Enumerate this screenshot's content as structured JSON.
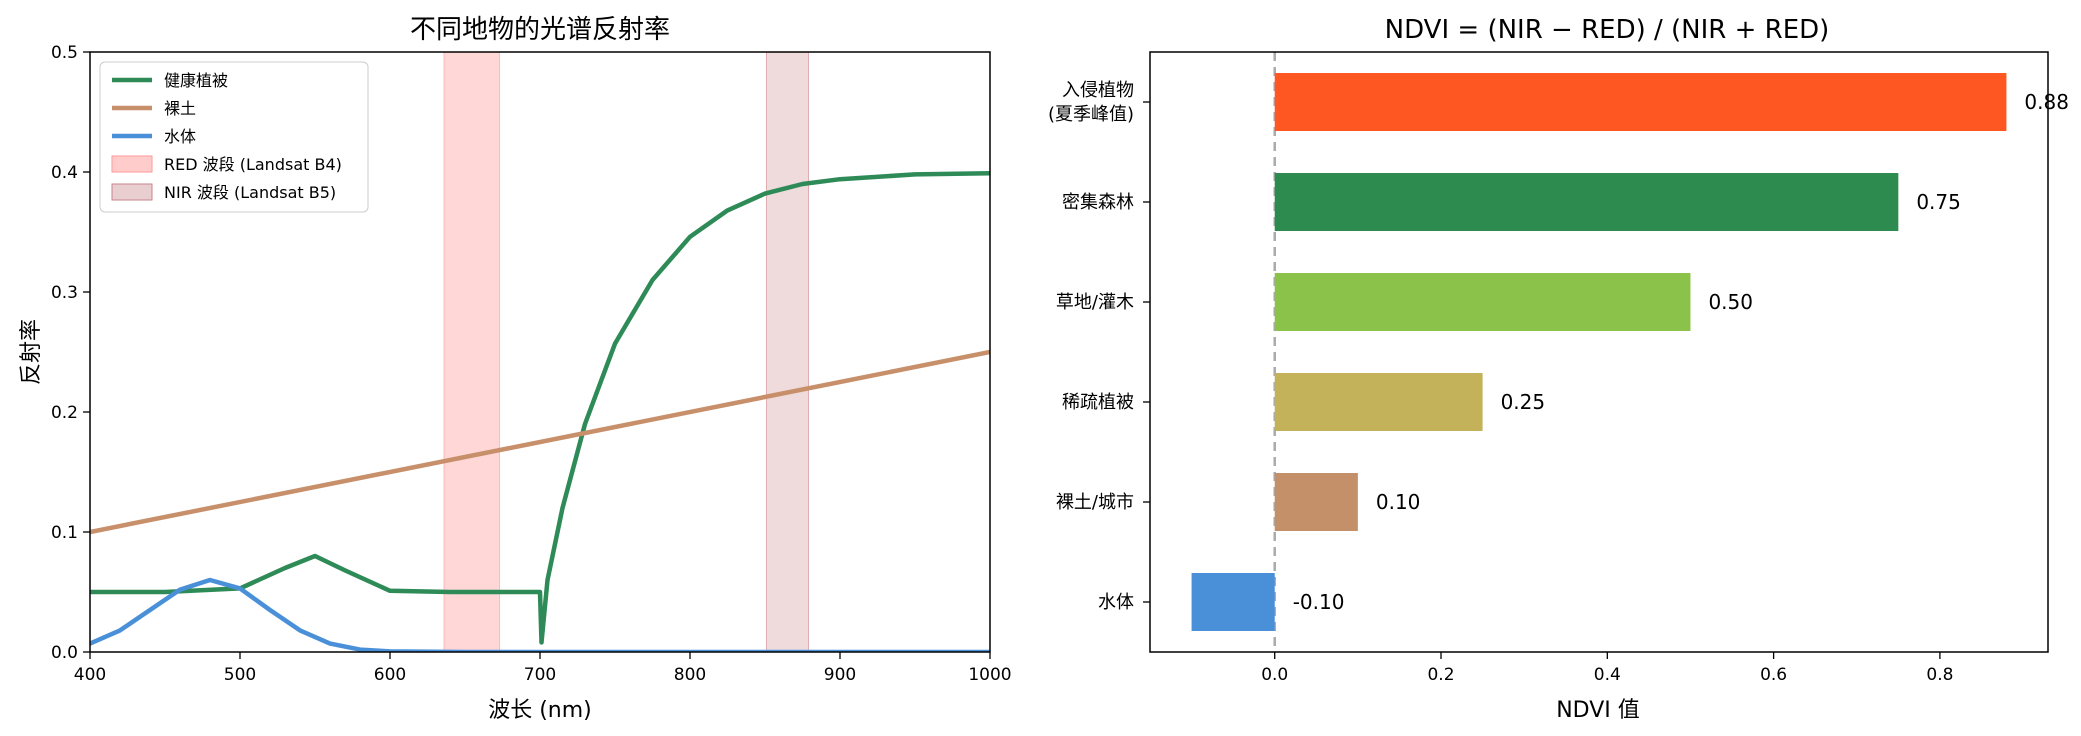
{
  "chart_data": [
    {
      "type": "line",
      "title": "不同地物的光谱反射率",
      "xlabel": "波长 (nm)",
      "ylabel": "反射率",
      "xlim": [
        400,
        1000
      ],
      "ylim": [
        0,
        0.5
      ],
      "xticks": [
        400,
        500,
        600,
        700,
        800,
        900,
        1000
      ],
      "yticks": [
        0.0,
        0.1,
        0.2,
        0.3,
        0.4,
        0.5
      ],
      "xtick_labels": [
        "400",
        "500",
        "600",
        "700",
        "800",
        "900",
        "1000"
      ],
      "ytick_labels": [
        "0.0",
        "0.1",
        "0.2",
        "0.3",
        "0.4",
        "0.5"
      ],
      "legend_position": "top-left",
      "grid": false,
      "series": [
        {
          "name": "健康植被",
          "color": "#2e8b57",
          "x": [
            400,
            450,
            500,
            530,
            550,
            570,
            600,
            640,
            680,
            699,
            700,
            701,
            705,
            715,
            730,
            750,
            775,
            800,
            825,
            850,
            875,
            900,
            950,
            1000
          ],
          "y": [
            0.05,
            0.05,
            0.053,
            0.07,
            0.08,
            0.068,
            0.051,
            0.05,
            0.05,
            0.05,
            0.05,
            0.008,
            0.06,
            0.12,
            0.19,
            0.257,
            0.31,
            0.346,
            0.368,
            0.382,
            0.39,
            0.394,
            0.398,
            0.399
          ]
        },
        {
          "name": "裸土",
          "color": "#c8906a",
          "x": [
            400,
            1000
          ],
          "y": [
            0.1,
            0.25
          ]
        },
        {
          "name": "水体",
          "color": "#4a90d9",
          "x": [
            400,
            420,
            440,
            460,
            480,
            500,
            520,
            540,
            560,
            580,
            600,
            650,
            700,
            800,
            900,
            1000
          ],
          "y": [
            0.007,
            0.018,
            0.035,
            0.052,
            0.06,
            0.053,
            0.035,
            0.018,
            0.007,
            0.002,
            0.0005,
            0.0,
            0.0,
            0.0,
            0.0,
            0.0
          ]
        }
      ],
      "bands": [
        {
          "name": "RED 波段 (Landsat B4)",
          "x_range": [
            636,
            673
          ],
          "color": "#ff9a9a",
          "opacity": 0.4
        },
        {
          "name": "NIR 波段 (Landsat B5)",
          "x_range": [
            851,
            879
          ],
          "color": "#c9858a",
          "opacity": 0.3
        }
      ]
    },
    {
      "type": "bar",
      "orientation": "horizontal",
      "title": "NDVI = (NIR − RED) / (NIR + RED)",
      "xlabel": "NDVI 值",
      "ylabel": "",
      "xlim": [
        -0.15,
        0.93
      ],
      "xticks": [
        0.0,
        0.2,
        0.4,
        0.6,
        0.8
      ],
      "xtick_labels": [
        "0.0",
        "0.2",
        "0.4",
        "0.6",
        "0.8"
      ],
      "reference_line": {
        "x": 0,
        "style": "dashed",
        "color": "#aaaaaa"
      },
      "categories": [
        [
          "入侵植物",
          "(夏季峰值)"
        ],
        [
          "密集森林"
        ],
        [
          "草地/灌木"
        ],
        [
          "稀疏植被"
        ],
        [
          "裸土/城市"
        ],
        [
          "水体"
        ]
      ],
      "values": [
        0.88,
        0.75,
        0.5,
        0.25,
        0.1,
        -0.1
      ],
      "value_labels": [
        "0.88",
        "0.75",
        "0.50",
        "0.25",
        "0.10",
        "-0.10"
      ],
      "colors": [
        "#ff5722",
        "#2e8b50",
        "#8bc34a",
        "#c4b25a",
        "#c4906a",
        "#4a90d9"
      ]
    }
  ]
}
